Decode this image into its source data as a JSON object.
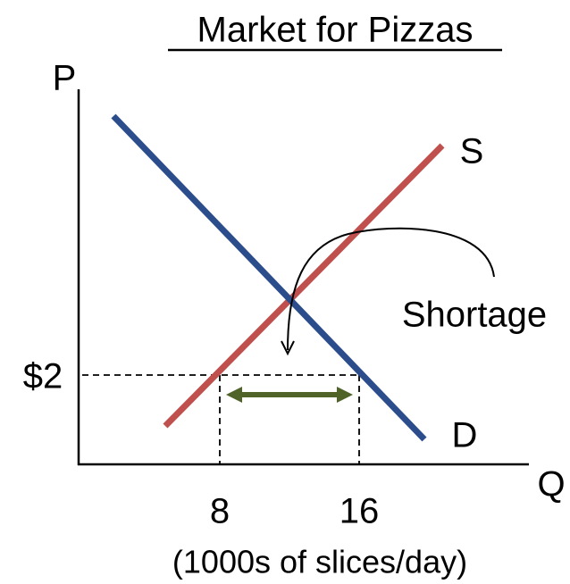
{
  "title": "Market for Pizzas",
  "y_axis_label": "P",
  "x_axis_label": "Q",
  "supply_label": "S",
  "demand_label": "D",
  "price_label": "$2",
  "quantity_labels": [
    "8",
    "16"
  ],
  "units_label": "(1000s of slices/day)",
  "annotation": "Shortage"
}
